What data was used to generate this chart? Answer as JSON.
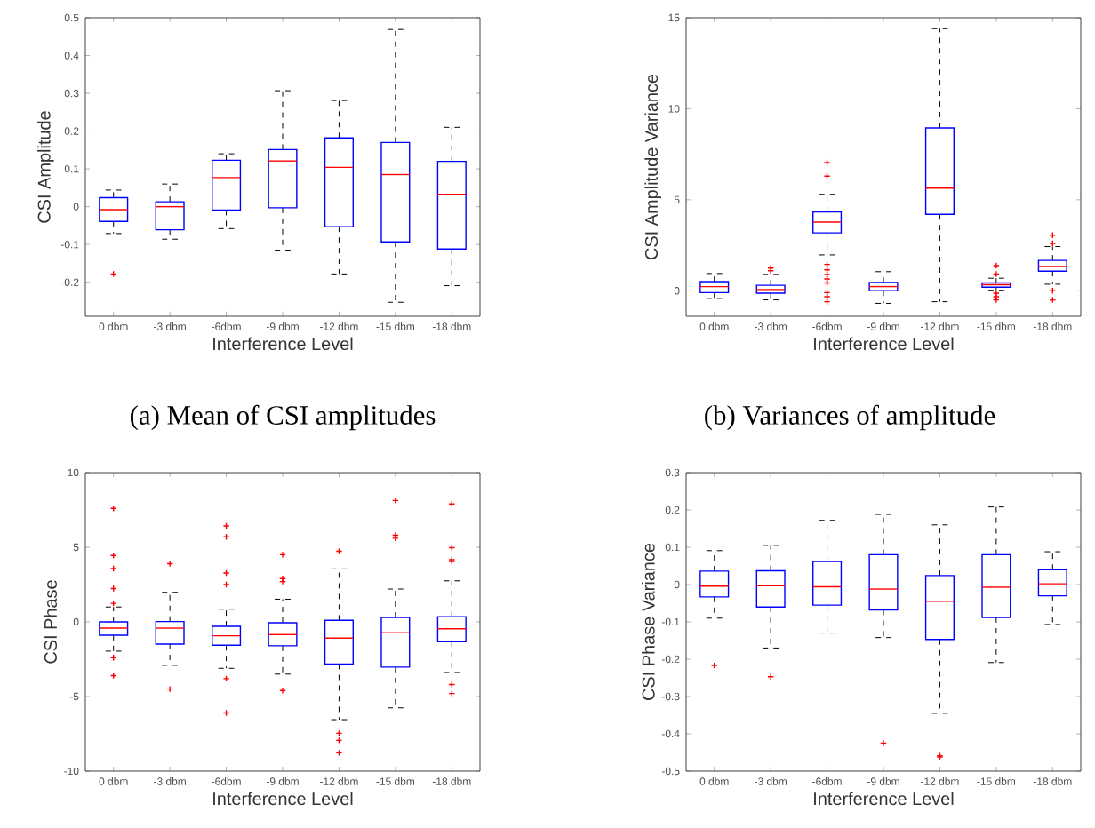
{
  "chart_data": [
    {
      "type": "box",
      "color": "#0000ff",
      "xlabel": "Interference Level",
      "ylabel": "CSI Amplitude",
      "annotations": [
        "(a) Mean of CSI amplitudes"
      ],
      "categories": [
        "0 dbm",
        "-3 dbm",
        "-6dbm",
        "-9 dbm",
        "-12 dbm",
        "-15 dbm",
        "-18 dbm"
      ],
      "ylim": [
        -0.29,
        0.5
      ],
      "yticks": [
        -0.2,
        -0.1,
        0,
        0.1,
        0.2,
        0.3,
        0.4,
        0.5
      ],
      "boxes": [
        {
          "low": -0.071,
          "q1": -0.039,
          "median": -0.008,
          "q3": 0.024,
          "high": 0.044,
          "outliers": [
            -0.178
          ]
        },
        {
          "low": -0.086,
          "q1": -0.061,
          "median": 0,
          "q3": 0.013,
          "high": 0.06
        },
        {
          "low": -0.058,
          "q1": -0.009,
          "median": 0.077,
          "q3": 0.123,
          "high": 0.14
        },
        {
          "low": -0.115,
          "q1": -0.003,
          "median": 0.121,
          "q3": 0.151,
          "high": 0.307
        },
        {
          "low": -0.178,
          "q1": -0.053,
          "median": 0.104,
          "q3": 0.182,
          "high": 0.281
        },
        {
          "low": -0.253,
          "q1": -0.093,
          "median": 0.085,
          "q3": 0.17,
          "high": 0.469
        },
        {
          "low": -0.209,
          "q1": -0.112,
          "median": 0.033,
          "q3": 0.12,
          "high": 0.21
        }
      ]
    },
    {
      "type": "box",
      "color": "#0000ff",
      "xlabel": "Interference Level",
      "ylabel": "CSI Amplitude Variance",
      "annotations": [
        "(b) Variances of amplitude"
      ],
      "categories": [
        "0 dbm",
        "-3 dbm",
        "-6dbm",
        "-9 dbm",
        "-12 dbm",
        "-15 dbm",
        "-18 dbm"
      ],
      "ylim": [
        -1.4,
        15
      ],
      "yticks": [
        0,
        5,
        10,
        15
      ],
      "boxes": [
        {
          "low": -0.43,
          "q1": -0.1,
          "median": 0.23,
          "q3": 0.5,
          "high": 0.95
        },
        {
          "low": -0.5,
          "q1": -0.13,
          "median": 0.07,
          "q3": 0.3,
          "high": 0.9,
          "outliers": [
            1.25,
            1.1
          ]
        },
        {
          "low": 1.97,
          "q1": 3.18,
          "median": 3.77,
          "q3": 4.33,
          "high": 5.3,
          "outliers": [
            7.05,
            6.3,
            1.45,
            1.15,
            0.9,
            0.65,
            0.43,
            -0.1,
            -0.33,
            -0.6
          ]
        },
        {
          "low": -0.69,
          "q1": 0,
          "median": 0.23,
          "q3": 0.46,
          "high": 1.05
        },
        {
          "low": -0.6,
          "q1": 4.2,
          "median": 5.64,
          "q3": 8.95,
          "high": 14.4
        },
        {
          "low": 0.03,
          "q1": 0.2,
          "median": 0.33,
          "q3": 0.43,
          "high": 0.69,
          "outliers": [
            1.38,
            0.92,
            -0.13,
            -0.33,
            -0.5
          ]
        },
        {
          "low": 0.36,
          "q1": 1.08,
          "median": 1.34,
          "q3": 1.67,
          "high": 2.43,
          "outliers": [
            3.05,
            2.6,
            0,
            -0.5
          ]
        }
      ]
    },
    {
      "type": "box",
      "color": "#0000ff",
      "xlabel": "Interference Level",
      "ylabel": "CSI Phase",
      "categories": [
        "0 dbm",
        "-3 dbm",
        "-6dbm",
        "-9 dbm",
        "-12 dbm",
        "-15 dbm",
        "-18 dbm"
      ],
      "ylim": [
        -10,
        10
      ],
      "yticks": [
        -10,
        -5,
        0,
        5,
        10
      ],
      "boxes": [
        {
          "low": -1.96,
          "q1": -0.89,
          "median": -0.42,
          "q3": 0,
          "high": 1.0,
          "outliers": [
            7.6,
            4.45,
            3.57,
            2.23,
            1.24,
            -2.4,
            -3.6
          ]
        },
        {
          "low": -2.91,
          "q1": -1.49,
          "median": -0.42,
          "q3": 0.02,
          "high": 1.98,
          "outliers": [
            3.9,
            -4.5
          ]
        },
        {
          "low": -3.11,
          "q1": -1.56,
          "median": -0.93,
          "q3": -0.3,
          "high": 0.85,
          "outliers": [
            6.43,
            5.7,
            3.27,
            2.5,
            -3.8,
            -6.1
          ]
        },
        {
          "low": -3.5,
          "q1": -1.6,
          "median": -0.85,
          "q3": -0.06,
          "high": 1.52,
          "outliers": [
            4.5,
            2.9,
            2.7,
            -4.6
          ]
        },
        {
          "low": -6.55,
          "q1": -2.83,
          "median": -1.09,
          "q3": 0.1,
          "high": 3.55,
          "outliers": [
            4.73,
            -7.46,
            -7.94,
            -8.77
          ]
        },
        {
          "low": -5.76,
          "q1": -3.03,
          "median": -0.73,
          "q3": 0.3,
          "high": 2.2,
          "outliers": [
            8.13,
            5.8,
            5.6
          ]
        },
        {
          "low": -3.39,
          "q1": -1.33,
          "median": -0.46,
          "q3": 0.34,
          "high": 2.75,
          "outliers": [
            7.9,
            4.97,
            4.17,
            4.05,
            -4.2,
            -4.8
          ]
        }
      ]
    },
    {
      "type": "box",
      "color": "#0000ff",
      "xlabel": "Interference Level",
      "ylabel": "CSI Phase Variance",
      "categories": [
        "0 dbm",
        "-3 dbm",
        "-6dbm",
        "-9 dbm",
        "-12 dbm",
        "-15 dbm",
        "-18 dbm"
      ],
      "ylim": [
        -0.5,
        0.3
      ],
      "yticks": [
        -0.5,
        -0.4,
        -0.3,
        -0.2,
        -0.1,
        0,
        0.1,
        0.2,
        0.3
      ],
      "boxes": [
        {
          "low": -0.09,
          "q1": -0.033,
          "median": -0.004,
          "q3": 0.036,
          "high": 0.091,
          "outliers": [
            -0.217
          ]
        },
        {
          "low": -0.17,
          "q1": -0.06,
          "median": -0.003,
          "q3": 0.037,
          "high": 0.105,
          "outliers": [
            -0.247
          ]
        },
        {
          "low": -0.13,
          "q1": -0.055,
          "median": -0.006,
          "q3": 0.062,
          "high": 0.172
        },
        {
          "low": -0.142,
          "q1": -0.068,
          "median": -0.012,
          "q3": 0.08,
          "high": 0.188,
          "outliers": [
            -0.425
          ]
        },
        {
          "low": -0.345,
          "q1": -0.147,
          "median": -0.045,
          "q3": 0.024,
          "high": 0.16,
          "outliers": [
            -0.459,
            -0.462
          ]
        },
        {
          "low": -0.209,
          "q1": -0.088,
          "median": -0.007,
          "q3": 0.08,
          "high": 0.208
        },
        {
          "low": -0.107,
          "q1": -0.03,
          "median": 0.002,
          "q3": 0.04,
          "high": 0.088
        }
      ]
    }
  ]
}
